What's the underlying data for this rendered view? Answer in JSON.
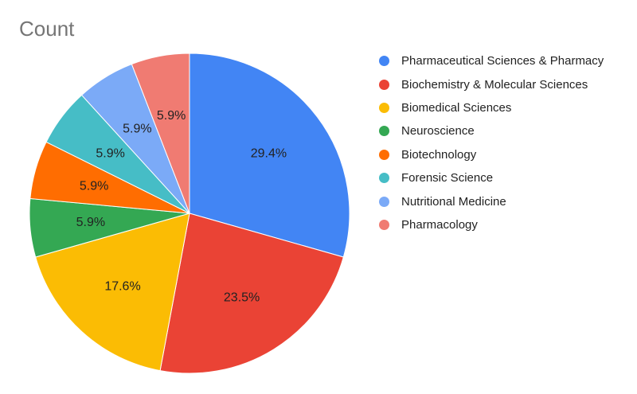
{
  "chart_data": {
    "type": "pie",
    "title": "Count",
    "start_angle_deg": 0,
    "direction": "clockwise",
    "legend_position": "right",
    "slices": [
      {
        "label": "Pharmaceutical Sciences & Pharmacy",
        "value": 5,
        "percent_label": "29.4%",
        "color": "#4285f4"
      },
      {
        "label": "Biochemistry & Molecular Sciences",
        "value": 4,
        "percent_label": "23.5%",
        "color": "#ea4335"
      },
      {
        "label": "Biomedical Sciences",
        "value": 3,
        "percent_label": "17.6%",
        "color": "#fbbc04"
      },
      {
        "label": "Neuroscience",
        "value": 1,
        "percent_label": "5.9%",
        "color": "#34a853"
      },
      {
        "label": "Biotechnology",
        "value": 1,
        "percent_label": "5.9%",
        "color": "#ff6d01"
      },
      {
        "label": "Forensic Science",
        "value": 1,
        "percent_label": "5.9%",
        "color": "#46bdc6"
      },
      {
        "label": "Nutritional Medicine",
        "value": 1,
        "percent_label": "5.9%",
        "color": "#7baaf7"
      },
      {
        "label": "Pharmacology",
        "value": 1,
        "percent_label": "5.9%",
        "color": "#f07b72"
      }
    ]
  }
}
